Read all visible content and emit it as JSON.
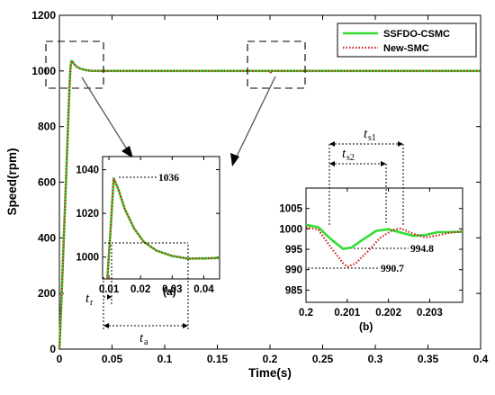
{
  "chart_data": {
    "type": "line",
    "xlabel": "Time(s)",
    "ylabel": "Speed(rpm)",
    "xlim": [
      0,
      0.4
    ],
    "ylim": [
      0,
      1200
    ],
    "xticks": [
      "0",
      "0.05",
      "0.1",
      "0.15",
      "0.2",
      "0.25",
      "0.3",
      "0.35",
      "0.4"
    ],
    "yticks": [
      "0",
      "200",
      "400",
      "600",
      "800",
      "1000",
      "1200"
    ],
    "legend_position": "top-right",
    "grid": false,
    "series": [
      {
        "name": "SSFDO-CSMC",
        "color": "#33dd33",
        "style": "solid",
        "points": [
          [
            0,
            0
          ],
          [
            0.002,
            180
          ],
          [
            0.004,
            380
          ],
          [
            0.006,
            580
          ],
          [
            0.008,
            780
          ],
          [
            0.0095,
            935
          ],
          [
            0.0105,
            1010
          ],
          [
            0.0115,
            1036
          ],
          [
            0.013,
            1030
          ],
          [
            0.016,
            1016
          ],
          [
            0.02,
            1008
          ],
          [
            0.025,
            1003
          ],
          [
            0.03,
            1000.5
          ],
          [
            0.04,
            1000
          ],
          [
            0.2,
            1000
          ],
          [
            0.2008,
            996
          ],
          [
            0.2016,
            1000
          ],
          [
            0.4,
            1000
          ]
        ]
      },
      {
        "name": "New-SMC",
        "color": "#cc2222",
        "style": "dotted",
        "points": [
          [
            0,
            0
          ],
          [
            0.002,
            180
          ],
          [
            0.004,
            380
          ],
          [
            0.006,
            580
          ],
          [
            0.008,
            780
          ],
          [
            0.0095,
            935
          ],
          [
            0.0105,
            1010
          ],
          [
            0.0115,
            1036
          ],
          [
            0.013,
            1030
          ],
          [
            0.016,
            1016
          ],
          [
            0.02,
            1008
          ],
          [
            0.025,
            1003
          ],
          [
            0.03,
            1000.5
          ],
          [
            0.04,
            1000
          ],
          [
            0.2,
            1000
          ],
          [
            0.2009,
            992
          ],
          [
            0.202,
            1000
          ],
          [
            0.4,
            1000
          ]
        ]
      }
    ],
    "insets": [
      {
        "panel": "(a)",
        "xlim": [
          0.008,
          0.045
        ],
        "ylim": [
          990,
          1046
        ],
        "xticks": [
          "0.01",
          "0.02",
          "0.03",
          "0.04"
        ],
        "yticks": [
          "1000",
          "1020",
          "1040"
        ],
        "peak_label": "1036",
        "labels": {
          "rise": "t",
          "rise_sub": "r",
          "settle": "t",
          "settle_sub": "a"
        },
        "series": [
          {
            "name": "SSFDO-CSMC",
            "points": [
              [
                0.0095,
                990
              ],
              [
                0.0105,
                1012
              ],
              [
                0.0115,
                1036
              ],
              [
                0.013,
                1031
              ],
              [
                0.015,
                1022
              ],
              [
                0.018,
                1013
              ],
              [
                0.021,
                1007
              ],
              [
                0.025,
                1003
              ],
              [
                0.03,
                1000.5
              ],
              [
                0.035,
                999.3
              ],
              [
                0.04,
                999.4
              ],
              [
                0.045,
                999.6
              ]
            ]
          },
          {
            "name": "New-SMC",
            "points": [
              [
                0.0095,
                990
              ],
              [
                0.0105,
                1012
              ],
              [
                0.0115,
                1036
              ],
              [
                0.013,
                1031
              ],
              [
                0.015,
                1022
              ],
              [
                0.018,
                1013
              ],
              [
                0.021,
                1007
              ],
              [
                0.025,
                1003
              ],
              [
                0.03,
                1000.5
              ],
              [
                0.035,
                999.3
              ],
              [
                0.04,
                999.4
              ],
              [
                0.045,
                999.6
              ]
            ]
          }
        ]
      },
      {
        "panel": "(b)",
        "xlim": [
          0.2,
          0.2038
        ],
        "ylim": [
          982,
          1010
        ],
        "xticks": [
          "0.2",
          "0.201",
          "0.202",
          "0.203"
        ],
        "yticks": [
          "985",
          "990",
          "995",
          "1000",
          "1005"
        ],
        "min_labels": [
          "994.8",
          "990.7"
        ],
        "labels": {
          "s1": "t",
          "s1_sub": "s1",
          "s2": "t",
          "s2_sub": "s2"
        },
        "series": [
          {
            "name": "SSFDO-CSMC",
            "points": [
              [
                0.2,
                1001
              ],
              [
                0.2003,
                1000.4
              ],
              [
                0.2006,
                997.5
              ],
              [
                0.2009,
                995.1
              ],
              [
                0.2011,
                995.4
              ],
              [
                0.2014,
                997.5
              ],
              [
                0.2017,
                999.5
              ],
              [
                0.202,
                999.9
              ],
              [
                0.2023,
                999.1
              ],
              [
                0.2026,
                998.3
              ],
              [
                0.2029,
                998.5
              ],
              [
                0.2032,
                999.2
              ],
              [
                0.2035,
                999.2
              ],
              [
                0.2038,
                999.3
              ]
            ]
          },
          {
            "name": "New-SMC",
            "points": [
              [
                0.2,
                1000.4
              ],
              [
                0.2003,
                999.8
              ],
              [
                0.2006,
                995.5
              ],
              [
                0.2009,
                991.6
              ],
              [
                0.201,
                990.7
              ],
              [
                0.2012,
                991.5
              ],
              [
                0.2015,
                994.5
              ],
              [
                0.2018,
                997.8
              ],
              [
                0.2021,
                999.7
              ],
              [
                0.2023,
                1000.1
              ],
              [
                0.2026,
                998.8
              ],
              [
                0.2029,
                997.9
              ],
              [
                0.2032,
                998.4
              ],
              [
                0.2035,
                999.1
              ],
              [
                0.2038,
                999.3
              ]
            ]
          }
        ]
      }
    ]
  }
}
